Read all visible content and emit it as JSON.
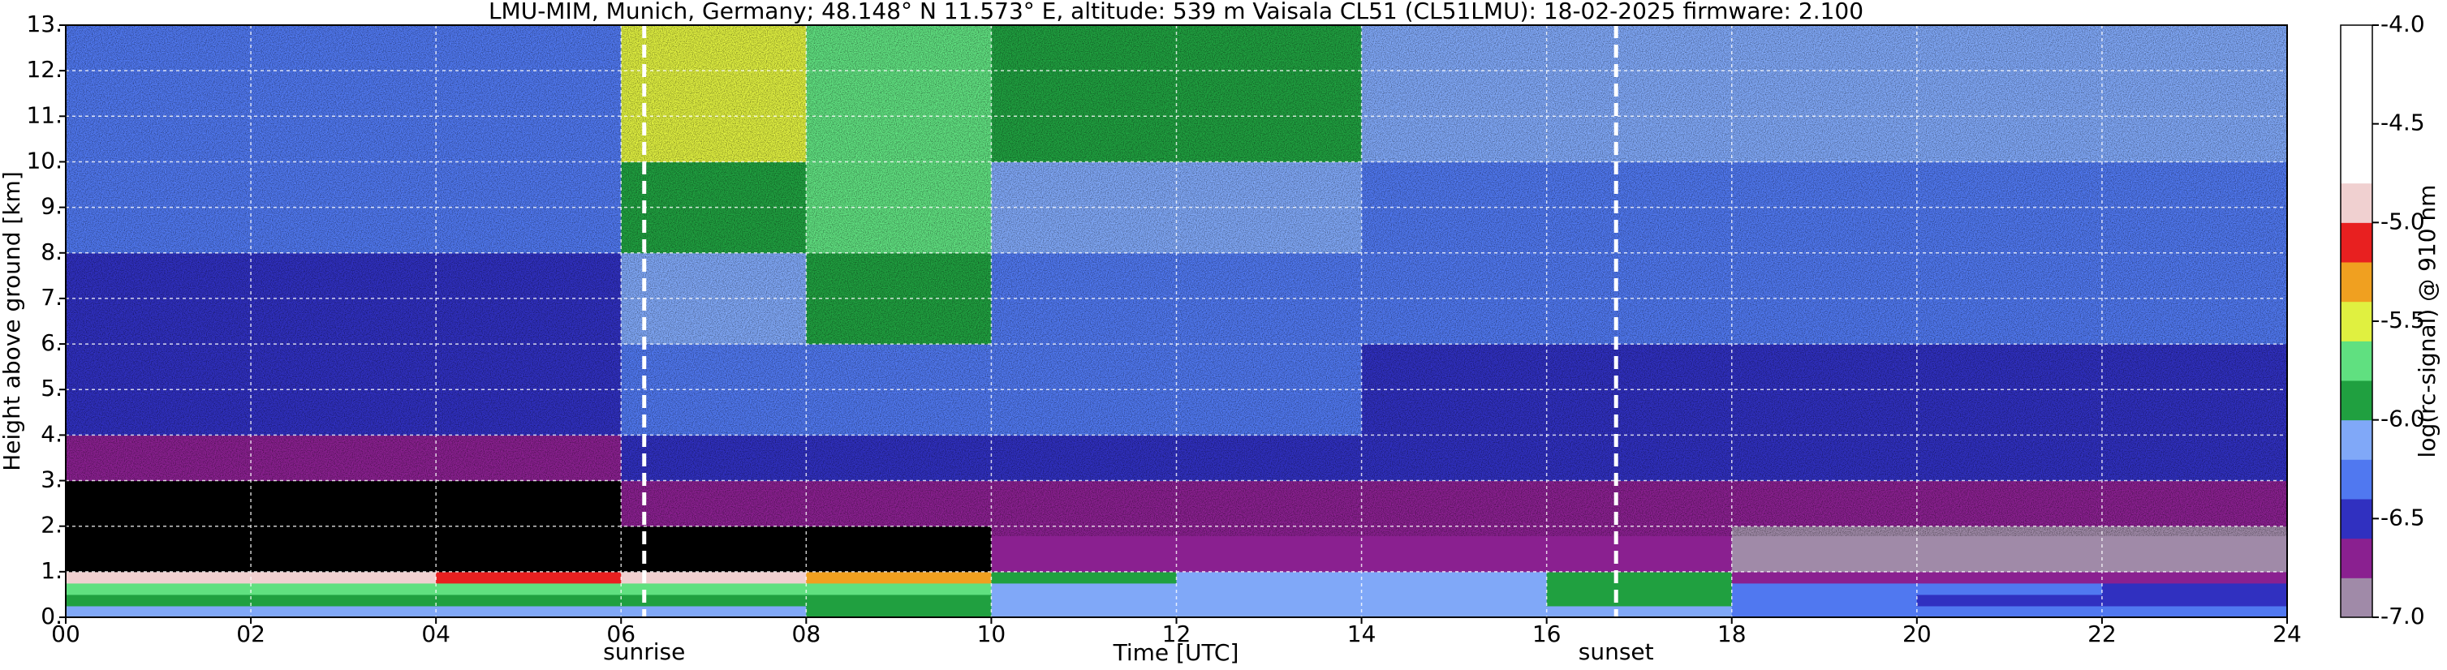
{
  "chart_data": {
    "type": "heatmap",
    "title": "LMU-MIM, Munich, Germany; 48.148° N 11.573° E, altitude: 539 m    Vaisala CL51 (CL51LMU): 18-02-2025    firmware: 2.100",
    "xlabel": "Time [UTC]",
    "ylabel": "Height above ground [km]",
    "xlim": [
      0,
      24
    ],
    "ylim": [
      0,
      13
    ],
    "xticks": [
      {
        "value": 0,
        "label": "00"
      },
      {
        "value": 2,
        "label": "02"
      },
      {
        "value": 4,
        "label": "04"
      },
      {
        "value": 6,
        "label": "06"
      },
      {
        "value": 8,
        "label": "08"
      },
      {
        "value": 10,
        "label": "10"
      },
      {
        "value": 12,
        "label": "12"
      },
      {
        "value": 14,
        "label": "14"
      },
      {
        "value": 16,
        "label": "16"
      },
      {
        "value": 18,
        "label": "18"
      },
      {
        "value": 20,
        "label": "20"
      },
      {
        "value": 22,
        "label": "22"
      },
      {
        "value": 24,
        "label": "24"
      }
    ],
    "yticks": [
      {
        "value": 0,
        "label": "0."
      },
      {
        "value": 1,
        "label": "1."
      },
      {
        "value": 2,
        "label": "2."
      },
      {
        "value": 3,
        "label": "3."
      },
      {
        "value": 4,
        "label": "4."
      },
      {
        "value": 5,
        "label": "5."
      },
      {
        "value": 6,
        "label": "6."
      },
      {
        "value": 7,
        "label": "7."
      },
      {
        "value": 8,
        "label": "8."
      },
      {
        "value": 9,
        "label": "9."
      },
      {
        "value": 10,
        "label": "10."
      },
      {
        "value": 11,
        "label": "11."
      },
      {
        "value": 12,
        "label": "12."
      },
      {
        "value": 13,
        "label": "13."
      }
    ],
    "grid": true,
    "grid_color": "#ffffff",
    "x_edges": [
      0,
      2,
      4,
      6,
      8,
      10,
      12,
      14,
      16,
      18,
      20,
      22,
      24
    ],
    "y_edges": [
      0,
      0.25,
      0.5,
      0.75,
      1,
      2,
      3,
      4,
      6,
      8,
      10,
      13
    ],
    "z": [
      [
        -6.1,
        -6.1,
        -6.1,
        -6.1,
        -6.0,
        -6.1,
        -6.1,
        -6.1,
        -6.1,
        -6.3,
        -6.3,
        -6.3
      ],
      [
        -5.9,
        -5.9,
        -5.9,
        -5.9,
        -5.9,
        -6.1,
        -6.1,
        -6.1,
        -6.0,
        -6.3,
        -6.5,
        -6.5
      ],
      [
        -5.7,
        -5.7,
        -5.7,
        -5.7,
        -5.8,
        -6.1,
        -6.1,
        -6.1,
        -5.9,
        -6.2,
        -6.3,
        -6.4
      ],
      [
        -4.9,
        -4.9,
        -5.1,
        -5.0,
        -5.3,
        -6.0,
        -6.1,
        -6.1,
        -6.0,
        -6.7,
        -6.7,
        -6.8
      ],
      [
        -7.3,
        -7.3,
        -7.3,
        -7.2,
        -7.1,
        -6.7,
        -6.7,
        -6.7,
        -6.8,
        -6.9,
        -6.9,
        -6.9
      ],
      [
        -7.1,
        -7.1,
        -7.1,
        -6.8,
        -6.7,
        -6.7,
        -6.7,
        -6.7,
        -6.7,
        -6.7,
        -6.7,
        -6.7
      ],
      [
        -6.7,
        -6.7,
        -6.7,
        -6.5,
        -6.4,
        -6.5,
        -6.5,
        -6.5,
        -6.5,
        -6.5,
        -6.5,
        -6.5
      ],
      [
        -6.5,
        -6.5,
        -6.5,
        -6.3,
        -6.2,
        -6.3,
        -6.3,
        -6.4,
        -6.4,
        -6.4,
        -6.4,
        -6.4
      ],
      [
        -6.4,
        -6.4,
        -6.4,
        -6.1,
        -6.0,
        -6.2,
        -6.2,
        -6.3,
        -6.3,
        -6.2,
        -6.3,
        -6.3
      ],
      [
        -6.3,
        -6.3,
        -6.3,
        -5.9,
        -5.8,
        -6.1,
        -6.1,
        -6.2,
        -6.2,
        -6.2,
        -6.2,
        -6.2
      ],
      [
        -6.2,
        -6.2,
        -6.2,
        -5.6,
        -5.7,
        -6.0,
        -6.0,
        -6.1,
        -6.1,
        -6.1,
        -6.1,
        -6.1
      ]
    ],
    "colorscale": [
      "#a08aa8",
      "#8a2090",
      "#3030c0",
      "#5078f0",
      "#80a8f8",
      "#20a040",
      "#60e080",
      "#e0f040",
      "#f0a020",
      "#e82020",
      "#f0d0d0",
      "#ffffff",
      "#ffffff",
      "#ffffff",
      "#ffffff"
    ],
    "under_color": "#000000",
    "colorbar": {
      "label": "log(rc-signal) @ 910 nm",
      "lim": [
        -7,
        -4
      ],
      "ticks": [
        {
          "value": -4,
          "label": "-4.0"
        },
        {
          "value": -4.5,
          "label": "-4.5"
        },
        {
          "value": -5,
          "label": "-5.0"
        },
        {
          "value": -5.5,
          "label": "-5.5"
        },
        {
          "value": -6,
          "label": "-6.0"
        },
        {
          "value": -6.5,
          "label": "-6.5"
        },
        {
          "value": -7,
          "label": "-7.0"
        }
      ]
    },
    "annotations": [
      {
        "x": 6.25,
        "text": "sunrise"
      },
      {
        "x": 16.75,
        "text": "sunset"
      }
    ]
  }
}
